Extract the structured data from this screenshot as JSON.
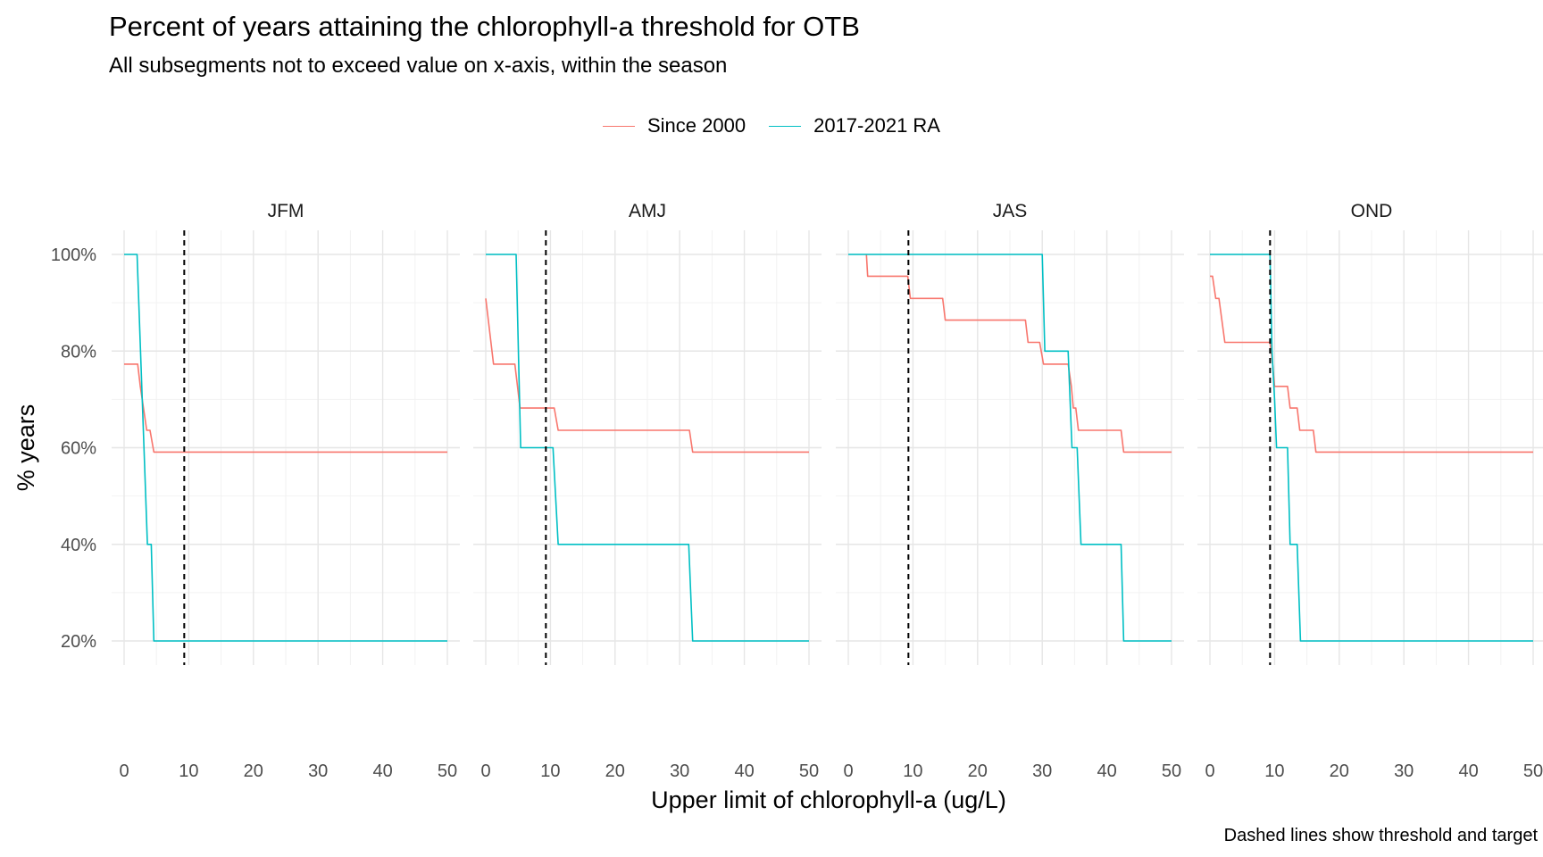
{
  "chart_data": {
    "type": "line",
    "title": "Percent of years attaining the chlorophyll-a threshold for OTB",
    "subtitle": "All subsegments not to exceed value on x-axis, within the season",
    "caption": "Dashed lines show threshold and target",
    "xlabel": "Upper limit of chlorophyll-a (ug/L)",
    "ylabel": "% years",
    "xlim": [
      0,
      50
    ],
    "ylim": [
      20,
      100
    ],
    "x_ticks": [
      "0",
      "10",
      "20",
      "30",
      "40",
      "50"
    ],
    "y_ticks": [
      "20%",
      "40%",
      "60%",
      "80%",
      "100%"
    ],
    "legend_position": "top",
    "grid": true,
    "threshold_line": 9.3,
    "series_styles": [
      {
        "name": "Since 2000",
        "color": "#F8766D"
      },
      {
        "name": "2017-2021 RA",
        "color": "#00BFC4"
      }
    ],
    "panels": [
      {
        "label": "JFM",
        "series": [
          {
            "name": "Since 2000",
            "points": [
              [
                0,
                77.3
              ],
              [
                2.1,
                77.3
              ],
              [
                2.5,
                72.7
              ],
              [
                3,
                68.2
              ],
              [
                3.5,
                63.6
              ],
              [
                4,
                63.6
              ],
              [
                4.6,
                59.1
              ],
              [
                50,
                59.1
              ]
            ]
          },
          {
            "name": "2017-2021 RA",
            "points": [
              [
                0,
                100
              ],
              [
                2,
                100
              ],
              [
                3.6,
                40
              ],
              [
                4.2,
                40
              ],
              [
                4.6,
                20
              ],
              [
                50,
                20
              ]
            ]
          }
        ]
      },
      {
        "label": "AMJ",
        "series": [
          {
            "name": "Since 2000",
            "points": [
              [
                0,
                90.9
              ],
              [
                1.2,
                77.3
              ],
              [
                4.5,
                77.3
              ],
              [
                5.3,
                68.2
              ],
              [
                10.6,
                68.2
              ],
              [
                11.2,
                63.6
              ],
              [
                31.5,
                63.6
              ],
              [
                32,
                59.1
              ],
              [
                50,
                59.1
              ]
            ]
          },
          {
            "name": "2017-2021 RA",
            "points": [
              [
                0,
                100
              ],
              [
                4.7,
                100
              ],
              [
                5.4,
                60
              ],
              [
                10.4,
                60
              ],
              [
                11.2,
                40
              ],
              [
                31.4,
                40
              ],
              [
                32,
                20
              ],
              [
                50,
                20
              ]
            ]
          }
        ]
      },
      {
        "label": "JAS",
        "series": [
          {
            "name": "Since 2000",
            "points": [
              [
                2.8,
                100
              ],
              [
                3,
                95.5
              ],
              [
                9.2,
                95.5
              ],
              [
                9.6,
                90.9
              ],
              [
                14.6,
                90.9
              ],
              [
                15,
                86.4
              ],
              [
                27.4,
                86.4
              ],
              [
                27.8,
                81.8
              ],
              [
                29.6,
                81.8
              ],
              [
                30.2,
                77.3
              ],
              [
                34,
                77.3
              ],
              [
                34.5,
                72.7
              ],
              [
                34.8,
                68.2
              ],
              [
                35.2,
                68.2
              ],
              [
                35.6,
                63.6
              ],
              [
                42.2,
                63.6
              ],
              [
                42.6,
                59.1
              ],
              [
                50,
                59.1
              ]
            ]
          },
          {
            "name": "2017-2021 RA",
            "points": [
              [
                0,
                100
              ],
              [
                30,
                100
              ],
              [
                30.4,
                80
              ],
              [
                34,
                80
              ],
              [
                34.6,
                60
              ],
              [
                35.4,
                60
              ],
              [
                36,
                40
              ],
              [
                42.2,
                40
              ],
              [
                42.6,
                20
              ],
              [
                50,
                20
              ]
            ]
          }
        ]
      },
      {
        "label": "OND",
        "series": [
          {
            "name": "Since 2000",
            "points": [
              [
                0,
                95.5
              ],
              [
                0.4,
                95.5
              ],
              [
                0.9,
                90.9
              ],
              [
                1.4,
                90.9
              ],
              [
                2.3,
                81.8
              ],
              [
                9.3,
                81.8
              ],
              [
                9.7,
                77.3
              ],
              [
                10,
                72.7
              ],
              [
                12,
                72.7
              ],
              [
                12.4,
                68.2
              ],
              [
                13.5,
                68.2
              ],
              [
                13.9,
                63.6
              ],
              [
                16,
                63.6
              ],
              [
                16.4,
                59.1
              ],
              [
                50,
                59.1
              ]
            ]
          },
          {
            "name": "2017-2021 RA",
            "points": [
              [
                0,
                100
              ],
              [
                9.3,
                100
              ],
              [
                9.6,
                80
              ],
              [
                10,
                70
              ],
              [
                10.3,
                60
              ],
              [
                12,
                60
              ],
              [
                12.4,
                40
              ],
              [
                13.5,
                40
              ],
              [
                14,
                20
              ],
              [
                50,
                20
              ]
            ]
          }
        ]
      }
    ]
  }
}
